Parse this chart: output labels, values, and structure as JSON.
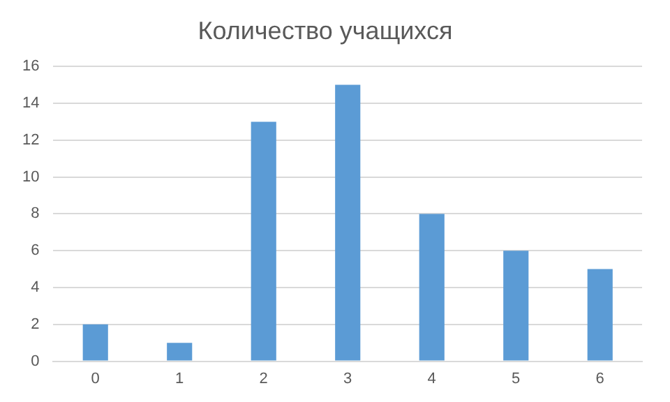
{
  "chart_data": {
    "type": "bar",
    "title": "Количество учащихся",
    "categories": [
      "0",
      "1",
      "2",
      "3",
      "4",
      "5",
      "6"
    ],
    "values": [
      2,
      1,
      13,
      15,
      8,
      6,
      5
    ],
    "color": "#5b9bd5",
    "ylim": [
      0,
      16
    ],
    "yticks": [
      0,
      2,
      4,
      6,
      8,
      10,
      12,
      14,
      16
    ],
    "grid": "y",
    "legend": false
  }
}
